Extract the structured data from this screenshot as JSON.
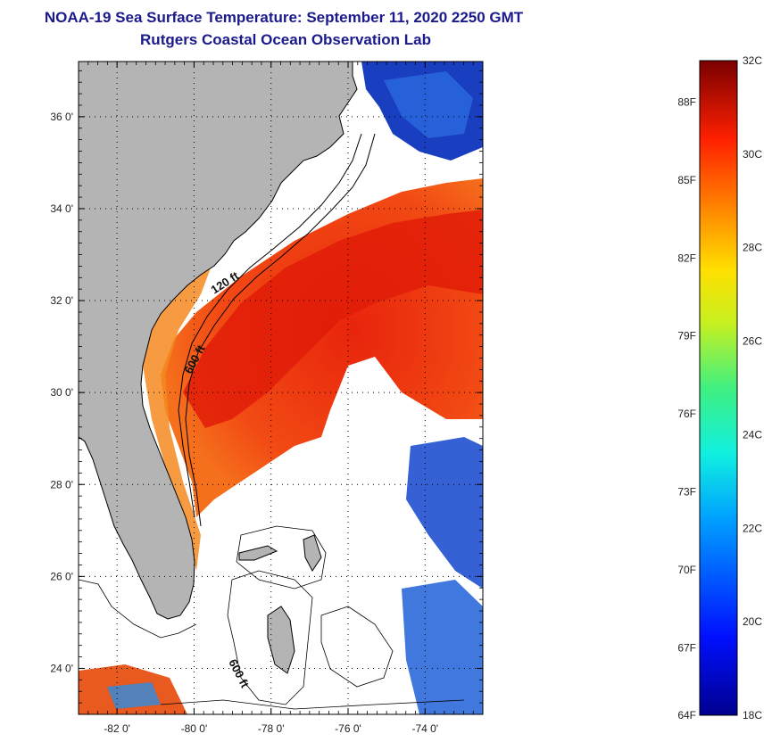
{
  "header": {
    "title": "NOAA-19 Sea Surface Temperature:  September 11, 2020 2250 GMT",
    "subtitle": "Rutgers Coastal Ocean Observation Lab"
  },
  "map": {
    "lon_labels": [
      "-82 0'",
      "-80 0'",
      "-78 0'",
      "-76 0'",
      "-74 0'"
    ],
    "lat_labels": [
      "36 0'",
      "34 0'",
      "32 0'",
      "30 0'",
      "28 0'",
      "26 0'",
      "24 0'"
    ],
    "lon_values": [
      -82,
      -80,
      -78,
      -76,
      -74
    ],
    "lat_values": [
      36,
      34,
      32,
      30,
      28,
      26,
      24
    ],
    "lon_range": [
      -83,
      -72.5
    ],
    "lat_range": [
      23,
      37.2
    ],
    "isobath_labels": [
      "120 ft",
      "600 ft",
      "600 ft"
    ],
    "colors": {
      "land": "#b4b4b4",
      "cloud": "#ffffff",
      "warm_water": "#f03a10",
      "hot_water": "#e0200a",
      "cool_water": "#1840c8"
    }
  },
  "colorbar": {
    "celsius_labels": [
      "32C",
      "30C",
      "28C",
      "26C",
      "24C",
      "22C",
      "20C",
      "18C"
    ],
    "celsius_values": [
      32,
      30,
      28,
      26,
      24,
      22,
      20,
      18
    ],
    "fahrenheit_labels": [
      "88F",
      "85F",
      "82F",
      "79F",
      "76F",
      "73F",
      "70F",
      "67F",
      "64F"
    ],
    "fahrenheit_values": [
      88,
      85,
      82,
      79,
      76,
      73,
      70,
      67,
      64
    ],
    "range_c": [
      18,
      32
    ]
  }
}
